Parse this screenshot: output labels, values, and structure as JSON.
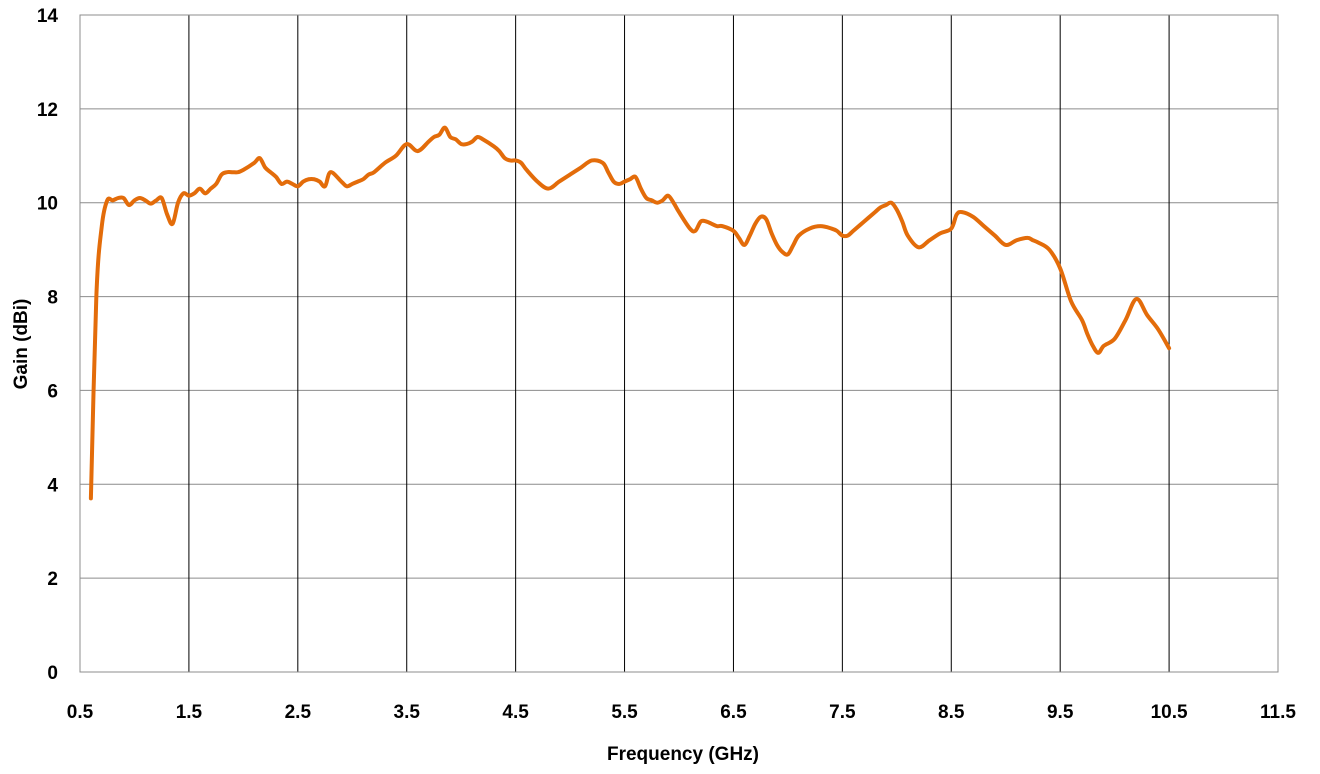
{
  "chart_data": {
    "type": "line",
    "title": "",
    "xlabel": "Frequency (GHz)",
    "ylabel": "Gain (dBi)",
    "xlim": [
      0.5,
      11.5
    ],
    "ylim": [
      0,
      14
    ],
    "x_ticks": [
      "0.5",
      "1.5",
      "2.5",
      "3.5",
      "4.5",
      "5.5",
      "6.5",
      "7.5",
      "8.5",
      "9.5",
      "10.5",
      "11.5"
    ],
    "y_ticks": [
      "0",
      "2",
      "4",
      "6",
      "8",
      "10",
      "12",
      "14"
    ],
    "grid": "both",
    "legend": "none",
    "series": [
      {
        "color": "#E36C0A",
        "x": [
          0.6,
          0.65,
          0.7,
          0.75,
          0.8,
          0.85,
          0.9,
          0.95,
          1.0,
          1.05,
          1.1,
          1.15,
          1.2,
          1.25,
          1.3,
          1.35,
          1.4,
          1.45,
          1.5,
          1.55,
          1.6,
          1.65,
          1.7,
          1.75,
          1.8,
          1.85,
          1.9,
          1.95,
          2.0,
          2.1,
          2.15,
          2.2,
          2.25,
          2.3,
          2.35,
          2.4,
          2.45,
          2.5,
          2.55,
          2.6,
          2.65,
          2.7,
          2.75,
          2.8,
          2.9,
          2.95,
          3.0,
          3.05,
          3.1,
          3.15,
          3.2,
          3.3,
          3.4,
          3.5,
          3.6,
          3.7,
          3.75,
          3.8,
          3.85,
          3.9,
          3.95,
          4.0,
          4.05,
          4.1,
          4.15,
          4.2,
          4.3,
          4.35,
          4.4,
          4.45,
          4.5,
          4.55,
          4.6,
          4.7,
          4.8,
          4.9,
          5.0,
          5.1,
          5.2,
          5.3,
          5.35,
          5.4,
          5.45,
          5.5,
          5.55,
          5.6,
          5.65,
          5.7,
          5.75,
          5.8,
          5.85,
          5.9,
          5.95,
          6.0,
          6.1,
          6.15,
          6.2,
          6.25,
          6.3,
          6.35,
          6.4,
          6.5,
          6.55,
          6.6,
          6.65,
          6.7,
          6.75,
          6.8,
          6.85,
          6.9,
          6.95,
          7.0,
          7.05,
          7.1,
          7.2,
          7.3,
          7.4,
          7.45,
          7.5,
          7.55,
          7.6,
          7.7,
          7.8,
          7.85,
          7.9,
          7.95,
          8.0,
          8.05,
          8.1,
          8.2,
          8.3,
          8.4,
          8.5,
          8.55,
          8.6,
          8.7,
          8.8,
          8.9,
          9.0,
          9.1,
          9.2,
          9.25,
          9.3,
          9.4,
          9.5,
          9.6,
          9.7,
          9.75,
          9.8,
          9.85,
          9.9,
          10.0,
          10.1,
          10.2,
          10.3,
          10.4,
          10.5
        ],
        "y": [
          3.7,
          8.0,
          9.5,
          10.05,
          10.05,
          10.1,
          10.1,
          9.95,
          10.05,
          10.1,
          10.05,
          9.98,
          10.05,
          10.1,
          9.75,
          9.55,
          10.0,
          10.2,
          10.15,
          10.2,
          10.3,
          10.2,
          10.3,
          10.4,
          10.6,
          10.65,
          10.65,
          10.65,
          10.7,
          10.85,
          10.95,
          10.75,
          10.65,
          10.55,
          10.4,
          10.45,
          10.4,
          10.35,
          10.45,
          10.5,
          10.5,
          10.45,
          10.35,
          10.65,
          10.45,
          10.35,
          10.4,
          10.45,
          10.5,
          10.6,
          10.65,
          10.85,
          11.0,
          11.25,
          11.1,
          11.3,
          11.4,
          11.45,
          11.6,
          11.4,
          11.35,
          11.25,
          11.25,
          11.3,
          11.4,
          11.35,
          11.2,
          11.1,
          10.95,
          10.9,
          10.9,
          10.85,
          10.7,
          10.45,
          10.3,
          10.45,
          10.6,
          10.75,
          10.9,
          10.85,
          10.65,
          10.45,
          10.4,
          10.45,
          10.5,
          10.55,
          10.3,
          10.1,
          10.05,
          10.0,
          10.05,
          10.15,
          10.0,
          9.8,
          9.45,
          9.4,
          9.6,
          9.6,
          9.55,
          9.5,
          9.5,
          9.4,
          9.25,
          9.1,
          9.3,
          9.55,
          9.7,
          9.65,
          9.35,
          9.1,
          8.95,
          8.9,
          9.1,
          9.3,
          9.45,
          9.5,
          9.45,
          9.4,
          9.3,
          9.3,
          9.4,
          9.6,
          9.8,
          9.9,
          9.95,
          10.0,
          9.85,
          9.6,
          9.3,
          9.05,
          9.2,
          9.35,
          9.45,
          9.75,
          9.8,
          9.7,
          9.5,
          9.3,
          9.1,
          9.2,
          9.25,
          9.2,
          9.15,
          9.0,
          8.6,
          7.9,
          7.5,
          7.2,
          6.95,
          6.8,
          6.95,
          7.1,
          7.5,
          7.95,
          7.6,
          7.3,
          6.9
        ]
      }
    ]
  }
}
